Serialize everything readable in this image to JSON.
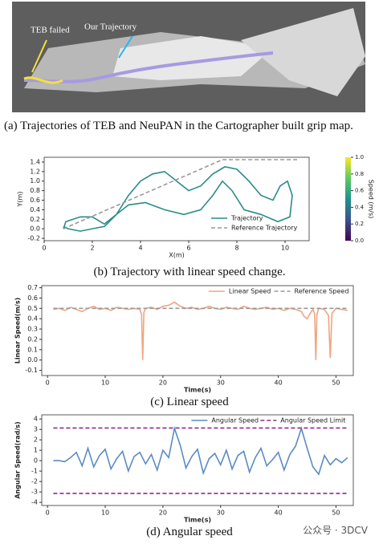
{
  "map": {
    "labels": [
      "TEB failed",
      "Our Trajectory"
    ],
    "caption": "(a) Trajectories of TEB and NeuPAN in the Cartographer built grip map."
  },
  "chart_data": [
    {
      "type": "line",
      "caption": "(b) Trajectory with linear speed change.",
      "xlabel": "X(m)",
      "ylabel": "Y(m)",
      "legend": "lower right",
      "xlim": [
        0,
        11
      ],
      "ylim": [
        -0.25,
        1.5
      ],
      "xticks": [
        0,
        2,
        4,
        6,
        8,
        10
      ],
      "yticks": [
        -0.2,
        {
          "value": 0,
          "label": "0.0"
        },
        0.2,
        0.4,
        0.6,
        0.8,
        {
          "value": 1,
          "label": "1.0"
        },
        1.2,
        1.4
      ],
      "colorbar": {
        "label": "Speed (m/s)",
        "ylim": [
          0,
          1
        ],
        "yticks": [
          {
            "value": 0,
            "label": "0.0"
          },
          0.2,
          0.4,
          0.6,
          0.8,
          {
            "value": 1,
            "label": "1.0"
          }
        ]
      },
      "series": [
        {
          "name": "Trajectory",
          "color": "#2a8c8a",
          "dash": false,
          "x": [
            0.8,
            0.9,
            1.5,
            2.0,
            2.5,
            3.0,
            3.5,
            4.0,
            4.5,
            5.0,
            5.5,
            6.0,
            6.5,
            7.0,
            7.5,
            8.0,
            8.5,
            9.0,
            9.5,
            9.8,
            10.1,
            10.3,
            10.2,
            9.7,
            9.0,
            8.3,
            7.8,
            7.4,
            7.0,
            6.5,
            5.8,
            5.0,
            4.2,
            3.5,
            3.0,
            2.5,
            2.0,
            1.5,
            1.0,
            0.8
          ],
          "values": [
            0.0,
            0.15,
            0.25,
            0.25,
            0.1,
            0.3,
            0.7,
            1.0,
            1.15,
            1.2,
            1.0,
            0.8,
            0.9,
            1.15,
            1.3,
            1.25,
            1.0,
            0.7,
            0.6,
            0.9,
            1.0,
            0.7,
            0.25,
            0.15,
            0.3,
            0.4,
            0.8,
            1.0,
            0.7,
            0.4,
            0.3,
            0.4,
            0.55,
            0.5,
            0.3,
            0.05,
            0.0,
            -0.05,
            0.0,
            0.05
          ]
        },
        {
          "name": "Reference Trajectory",
          "color": "#999999",
          "dash": true,
          "x": [
            0.8,
            7.4,
            10.5
          ],
          "values": [
            0.0,
            1.45,
            1.45
          ]
        }
      ]
    },
    {
      "type": "line",
      "caption": "(c) Linear speed",
      "xlabel": "Time(s)",
      "ylabel": "Linear Speed(m/s)",
      "legend": "upper right",
      "xlim": [
        -1,
        53
      ],
      "ylim": [
        -0.15,
        0.72
      ],
      "xticks": [
        0,
        10,
        20,
        30,
        40,
        50
      ],
      "yticks": [
        -0.1,
        {
          "value": 0,
          "label": "0.0"
        },
        0.1,
        0.2,
        0.3,
        0.4,
        0.5,
        0.6,
        0.7
      ],
      "series": [
        {
          "name": "Linear Speed",
          "color": "#f0a57f",
          "dash": false,
          "x": [
            1,
            2,
            3,
            4,
            5,
            6,
            7,
            8,
            9,
            10,
            11,
            12,
            13,
            14,
            15,
            16,
            16.3,
            16.5,
            16.7,
            17,
            18,
            19,
            20,
            21,
            22,
            23,
            24,
            25,
            26,
            27,
            28,
            29,
            30,
            31,
            32,
            33,
            34,
            35,
            36,
            37,
            38,
            39,
            40,
            41,
            42,
            43,
            44,
            44.5,
            45,
            45.5,
            46,
            46.3,
            46.5,
            46.7,
            47,
            48,
            48.7,
            49,
            49.3,
            50,
            51,
            52
          ],
          "values": [
            0.49,
            0.5,
            0.48,
            0.51,
            0.49,
            0.47,
            0.5,
            0.52,
            0.49,
            0.5,
            0.48,
            0.51,
            0.5,
            0.49,
            0.5,
            0.49,
            0.44,
            0.0,
            0.46,
            0.5,
            0.51,
            0.49,
            0.52,
            0.53,
            0.56,
            0.52,
            0.5,
            0.51,
            0.49,
            0.5,
            0.52,
            0.5,
            0.49,
            0.51,
            0.5,
            0.49,
            0.52,
            0.5,
            0.49,
            0.5,
            0.51,
            0.49,
            0.5,
            0.48,
            0.5,
            0.49,
            0.47,
            0.42,
            0.4,
            0.45,
            0.49,
            0.45,
            0.0,
            0.44,
            0.5,
            0.49,
            0.43,
            0.02,
            0.45,
            0.5,
            0.49,
            0.48
          ]
        },
        {
          "name": "Reference Speed",
          "color": "#999999",
          "dash": true,
          "x": [
            1,
            52
          ],
          "values": [
            0.5,
            0.5
          ]
        }
      ]
    },
    {
      "type": "line",
      "caption": "(d) Angular speed",
      "xlabel": "Time(s)",
      "ylabel": "Angular Speed(rad/s)",
      "legend": "upper right",
      "xlim": [
        -1,
        53
      ],
      "ylim": [
        -4.3,
        4.4
      ],
      "xticks": [
        0,
        10,
        20,
        30,
        40,
        50
      ],
      "yticks": [
        -4,
        -3,
        -2,
        -1,
        0,
        1,
        2,
        3,
        4
      ],
      "series": [
        {
          "name": "Angular Speed",
          "color": "#5b8bc4",
          "dash": false,
          "x": [
            1,
            2,
            3,
            4,
            5,
            6,
            7,
            8,
            9,
            10,
            11,
            12,
            13,
            14,
            15,
            16,
            17,
            18,
            19,
            20,
            21,
            22,
            23,
            24,
            25,
            26,
            27,
            28,
            29,
            30,
            31,
            32,
            33,
            34,
            35,
            36,
            37,
            38,
            39,
            40,
            41,
            42,
            43,
            44,
            45,
            46,
            47,
            48,
            49,
            50,
            51,
            52
          ],
          "values": [
            0.0,
            0.0,
            -0.1,
            0.3,
            0.8,
            -0.5,
            1.2,
            -0.6,
            0.5,
            1.1,
            -0.8,
            0.2,
            0.9,
            -1.0,
            0.4,
            0.8,
            -0.3,
            0.6,
            -0.9,
            1.0,
            0.3,
            3.1,
            1.5,
            -0.7,
            0.4,
            1.1,
            -1.2,
            0.2,
            0.7,
            -0.4,
            1.0,
            -0.8,
            0.5,
            0.9,
            -1.1,
            0.3,
            1.2,
            -0.5,
            0.1,
            0.8,
            -0.9,
            0.6,
            1.4,
            3.1,
            1.2,
            -0.6,
            -1.3,
            0.5,
            -0.4,
            0.2,
            -0.2,
            0.3
          ]
        },
        {
          "name": "Angular Speed Limit",
          "color": "#8e2a8e",
          "dash": true,
          "x": [
            1,
            52,
            1,
            1,
            52
          ],
          "values": [
            3.14,
            3.14,
            null,
            -3.14,
            -3.14
          ]
        }
      ]
    }
  ],
  "watermark": "公众号 · 3DCV"
}
